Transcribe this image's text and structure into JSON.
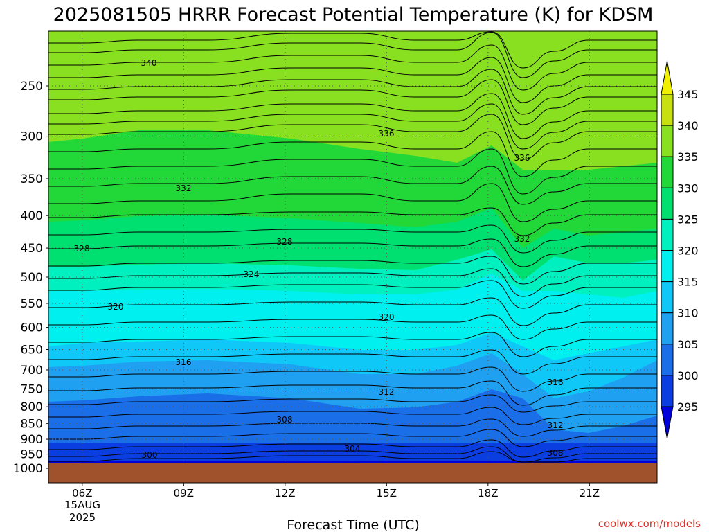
{
  "chart_data": {
    "type": "heatmap",
    "title": "2025081505 HRRR Forecast Potential Temperature (K) for KDSM",
    "xlabel": "Forecast Time (UTC)",
    "x_ticks": [
      "06Z",
      "09Z",
      "12Z",
      "15Z",
      "18Z",
      "21Z"
    ],
    "x_date_line1": "15AUG",
    "x_date_line2": "2025",
    "y_ticks": [
      250,
      300,
      350,
      400,
      450,
      500,
      550,
      600,
      650,
      700,
      750,
      800,
      850,
      900,
      950,
      1000
    ],
    "y_tick_labels": [
      "250",
      "300",
      "350",
      "400",
      "450",
      "500",
      "550",
      "600",
      "650",
      "700",
      "750",
      "800",
      "850",
      "900",
      "950",
      "1000"
    ],
    "ylim": [
      1000,
      200
    ],
    "y_scale": "log-pressure",
    "xlim_hours": [
      5,
      23
    ],
    "grid": true,
    "colorbar": {
      "levels": [
        295,
        300,
        305,
        310,
        315,
        320,
        325,
        330,
        335,
        340,
        345
      ],
      "labels": [
        "295",
        "300",
        "305",
        "310",
        "315",
        "320",
        "325",
        "330",
        "335",
        "340",
        "345"
      ],
      "colors": [
        "#0000d8",
        "#0a3ee0",
        "#1a6ee8",
        "#20a0f0",
        "#10c8f8",
        "#00f0f0",
        "#00f0c0",
        "#00e070",
        "#22d838",
        "#88e020",
        "#c8e010",
        "#f0f000"
      ],
      "placement": "right"
    },
    "contour_labels": [
      "340",
      "336",
      "336",
      "332",
      "332",
      "328",
      "328",
      "324",
      "320",
      "320",
      "316",
      "316",
      "312",
      "312",
      "308",
      "308",
      "304",
      "300"
    ],
    "colors": {
      "ground": "#a0522d",
      "contour": "#000000",
      "grid": "#555555"
    },
    "credit": "coolwx.com/models"
  }
}
